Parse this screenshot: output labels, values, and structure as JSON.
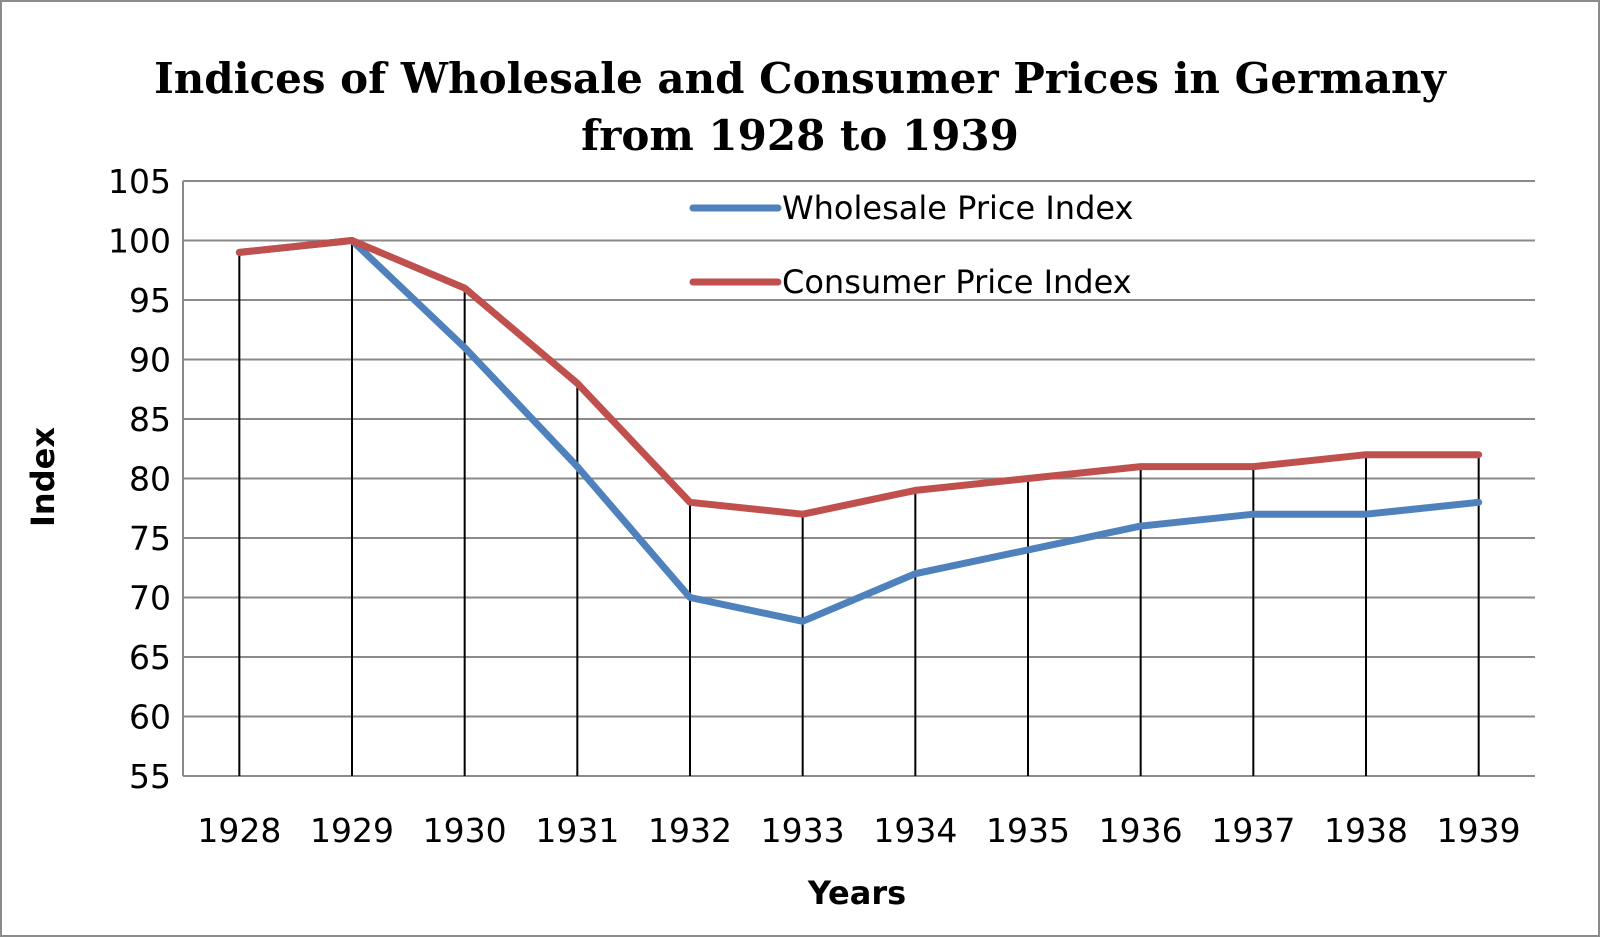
{
  "chart_data": {
    "type": "line",
    "title_line1": "Indices of Wholesale and Consumer Prices in Germany",
    "title_line2": "from 1928 to 1939",
    "xlabel": "Years",
    "ylabel": "Index",
    "categories": [
      "1928",
      "1929",
      "1930",
      "1931",
      "1932",
      "1933",
      "1934",
      "1935",
      "1936",
      "1937",
      "1938",
      "1939"
    ],
    "ylim": [
      55,
      105
    ],
    "ytick_step": 5,
    "yticks": [
      "55",
      "60",
      "65",
      "70",
      "75",
      "80",
      "85",
      "90",
      "95",
      "100",
      "105"
    ],
    "grid": true,
    "legend_position": "top-right",
    "series": [
      {
        "name": "Wholesale Price Index",
        "color": "#4f81bd",
        "values": [
          99,
          100,
          91,
          81,
          70,
          68,
          72,
          74,
          76,
          77,
          77,
          78
        ]
      },
      {
        "name": "Consumer Price Index",
        "color": "#c0504d",
        "values": [
          99,
          100,
          96,
          88,
          78,
          77,
          79,
          80,
          81,
          81,
          82,
          82
        ]
      }
    ]
  }
}
